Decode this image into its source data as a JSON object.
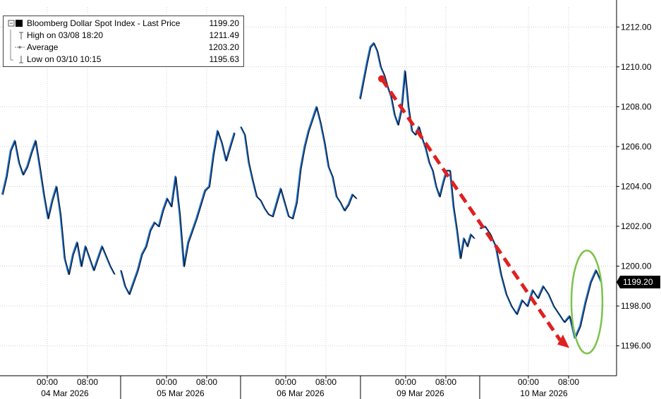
{
  "legend": {
    "title": "Bloomberg Dollar Spot Index - Last Price",
    "last": "1199.20",
    "items": [
      {
        "label": "High on 03/08 18:20",
        "value": "1211.49"
      },
      {
        "label": "Average",
        "value": "1203.20"
      },
      {
        "label": "Low on 03/10 10:15",
        "value": "1195.63"
      }
    ]
  },
  "colors": {
    "line": "#000000",
    "line_up": "#1f6fd0",
    "arrow": "#e02020",
    "ellipse": "#7cc34a",
    "last_tag": "#000000",
    "grid": "#cfcfcf"
  },
  "chart_data": {
    "type": "line",
    "ylim": [
      1194.5,
      1213
    ],
    "y_ticks": [
      1196,
      1198,
      1200,
      1202,
      1204,
      1206,
      1208,
      1210,
      1212
    ],
    "y_tick_labels": [
      "1196.00",
      "1198.00",
      "1200.00",
      "1202.00",
      "1204.00",
      "1206.00",
      "1208.00",
      "1210.00",
      "1212.00"
    ],
    "last_price_tag": "1199.20",
    "x_time_labels": [
      "00:00",
      "08:00",
      "00:00",
      "08:00",
      "00:00",
      "08:00",
      "00:00",
      "08:00",
      "00:00",
      "08:00"
    ],
    "x_day_labels": [
      "04 Mar 2026",
      "05 Mar 2026",
      "06 Mar 2026",
      "09 Mar 2026",
      "10 Mar 2026"
    ],
    "series": [
      {
        "values": [
          1203.6,
          1204.5,
          1205.8,
          1206.3,
          1205.2,
          1204.6,
          1205.0,
          1205.7,
          1206.3,
          1205.0,
          1203.6,
          1202.4,
          1203.3,
          1204.0,
          1202.6,
          1200.4,
          1199.6,
          1200.6,
          1201.2,
          1200.0,
          1201.0,
          1200.4,
          1199.8,
          1200.4,
          1201.0,
          1200.5,
          1200.0,
          1199.6,
          1199.8,
          1199.0,
          1198.6,
          1199.2,
          1199.8,
          1200.6,
          1201.0,
          1201.8,
          1202.2,
          1202.0,
          1202.8,
          1203.4,
          1203.0,
          1204.5,
          1202.6,
          1200.0,
          1201.2,
          1201.8,
          1202.4,
          1203.1,
          1203.8,
          1204.0,
          1205.6,
          1206.8,
          1206.2,
          1205.3,
          1206.0,
          1206.7,
          1207.0,
          1206.6,
          1205.2,
          1204.3,
          1203.5,
          1203.3,
          1202.9,
          1202.6,
          1202.5,
          1203.2,
          1203.9,
          1203.2,
          1202.5,
          1202.4,
          1203.2,
          1204.9,
          1206.0,
          1206.8,
          1207.4,
          1208.0,
          1207.2,
          1206.2,
          1205.0,
          1204.5,
          1203.5,
          1203.2,
          1202.8,
          1203.1,
          1203.6,
          1203.4,
          1208.4,
          1209.3,
          1210.2,
          1211.0,
          1211.2,
          1210.8,
          1210.0,
          1209.6,
          1209.0,
          1208.5,
          1207.6,
          1207.1,
          1207.9,
          1209.8,
          1208.0,
          1206.8,
          1206.6,
          1207.0,
          1206.4,
          1205.9,
          1205.2,
          1204.8,
          1204.0,
          1203.5,
          1204.2,
          1204.8,
          1204.8,
          1203.0,
          1201.8,
          1200.4,
          1201.4,
          1201.0,
          1201.6,
          1201.4,
          1201.9,
          1202.0,
          1201.6,
          1201.0,
          1199.6,
          1198.6,
          1198.0,
          1197.6,
          1198.3,
          1198.0,
          1198.8,
          1198.4,
          1199.0,
          1198.6,
          1198.0,
          1197.6,
          1197.2,
          1197.5,
          1196.4,
          1197.0,
          1198.2,
          1199.2,
          1199.8,
          1199.2
        ]
      }
    ],
    "annotations": [
      {
        "type": "arrow",
        "from": {
          "x": 91,
          "y": 1209.4
        },
        "to": {
          "x": 137,
          "y": 1196.0
        }
      },
      {
        "type": "ellipse",
        "center": {
          "x": 148,
          "y": 1198.2
        },
        "rx": 4,
        "ry": 2.8
      }
    ]
  }
}
